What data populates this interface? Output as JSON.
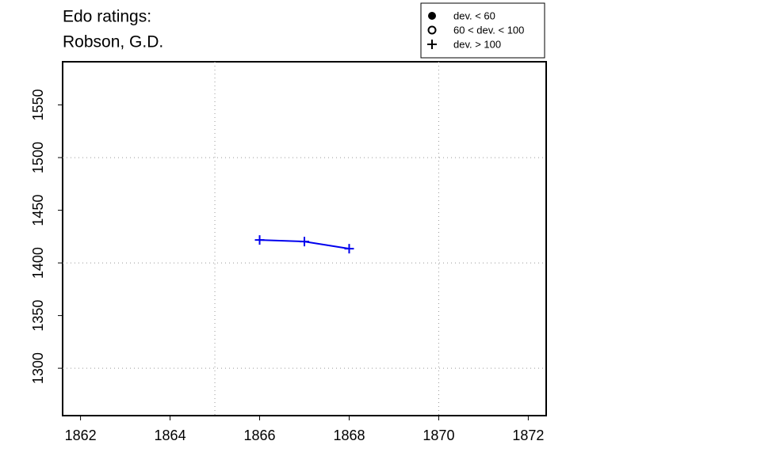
{
  "chart_data": {
    "type": "line",
    "title": [
      "Edo ratings:",
      "Robson, G.D."
    ],
    "x": [
      1866,
      1867,
      1868
    ],
    "series": [
      {
        "color": "#0000ee",
        "marker": "plus",
        "values": [
          1421.8,
          1420.3,
          1413.5
        ]
      }
    ],
    "xlim": [
      1861.6,
      1872.4
    ],
    "xticks": [
      1862,
      1864,
      1866,
      1868,
      1870,
      1872
    ],
    "ylim": [
      1255,
      1591
    ],
    "yticks": [
      1300,
      1350,
      1400,
      1450,
      1500,
      1550
    ],
    "xgrid": [
      1865,
      1870
    ],
    "ygrid": [
      1300,
      1400,
      1500
    ],
    "legend": {
      "position": "top-right",
      "entries": [
        {
          "marker": "dot",
          "label": "dev. < 60"
        },
        {
          "marker": "circle",
          "label": "60 < dev. < 100"
        },
        {
          "marker": "plus",
          "label": "dev. > 100"
        }
      ]
    }
  }
}
